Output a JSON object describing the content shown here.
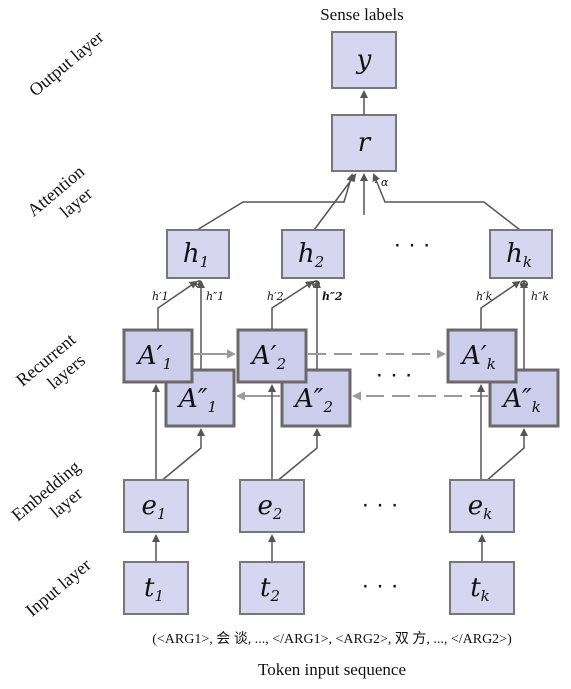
{
  "title": "Sense labels",
  "output": {
    "y": "y"
  },
  "attention": {
    "r": "r",
    "alpha": "· α"
  },
  "hidden": {
    "h_sym": "h",
    "subs": [
      "1",
      "2",
      "k"
    ]
  },
  "recurrent": {
    "fwd_sym": "A′",
    "bwd_sym": "A″",
    "subs": [
      "1",
      "2",
      "k"
    ]
  },
  "branch_labels": {
    "fwd": [
      "h′1",
      "h′2",
      "h′k"
    ],
    "bwd": [
      "h″1",
      "h″2",
      "h″k"
    ]
  },
  "embedding": {
    "sym": "e",
    "subs": [
      "1",
      "2",
      "k"
    ]
  },
  "input": {
    "sym": "t",
    "subs": [
      "1",
      "2",
      "k"
    ]
  },
  "ellipsis": "· · ·",
  "plus": "⊕",
  "layer_labels": {
    "output": "Output layer",
    "attention_1": "Attention",
    "attention_2": "layer",
    "recurrent_1": "Recurrent",
    "recurrent_2": "layers",
    "embedding_1": "Embedding",
    "embedding_2": "layer",
    "input": "Input layer"
  },
  "token_sequence": "(<ARG1>, 会 谈, ..., </ARG1>, <ARG2>, 双 方, ..., </ARG2>)",
  "caption": "Token input sequence"
}
